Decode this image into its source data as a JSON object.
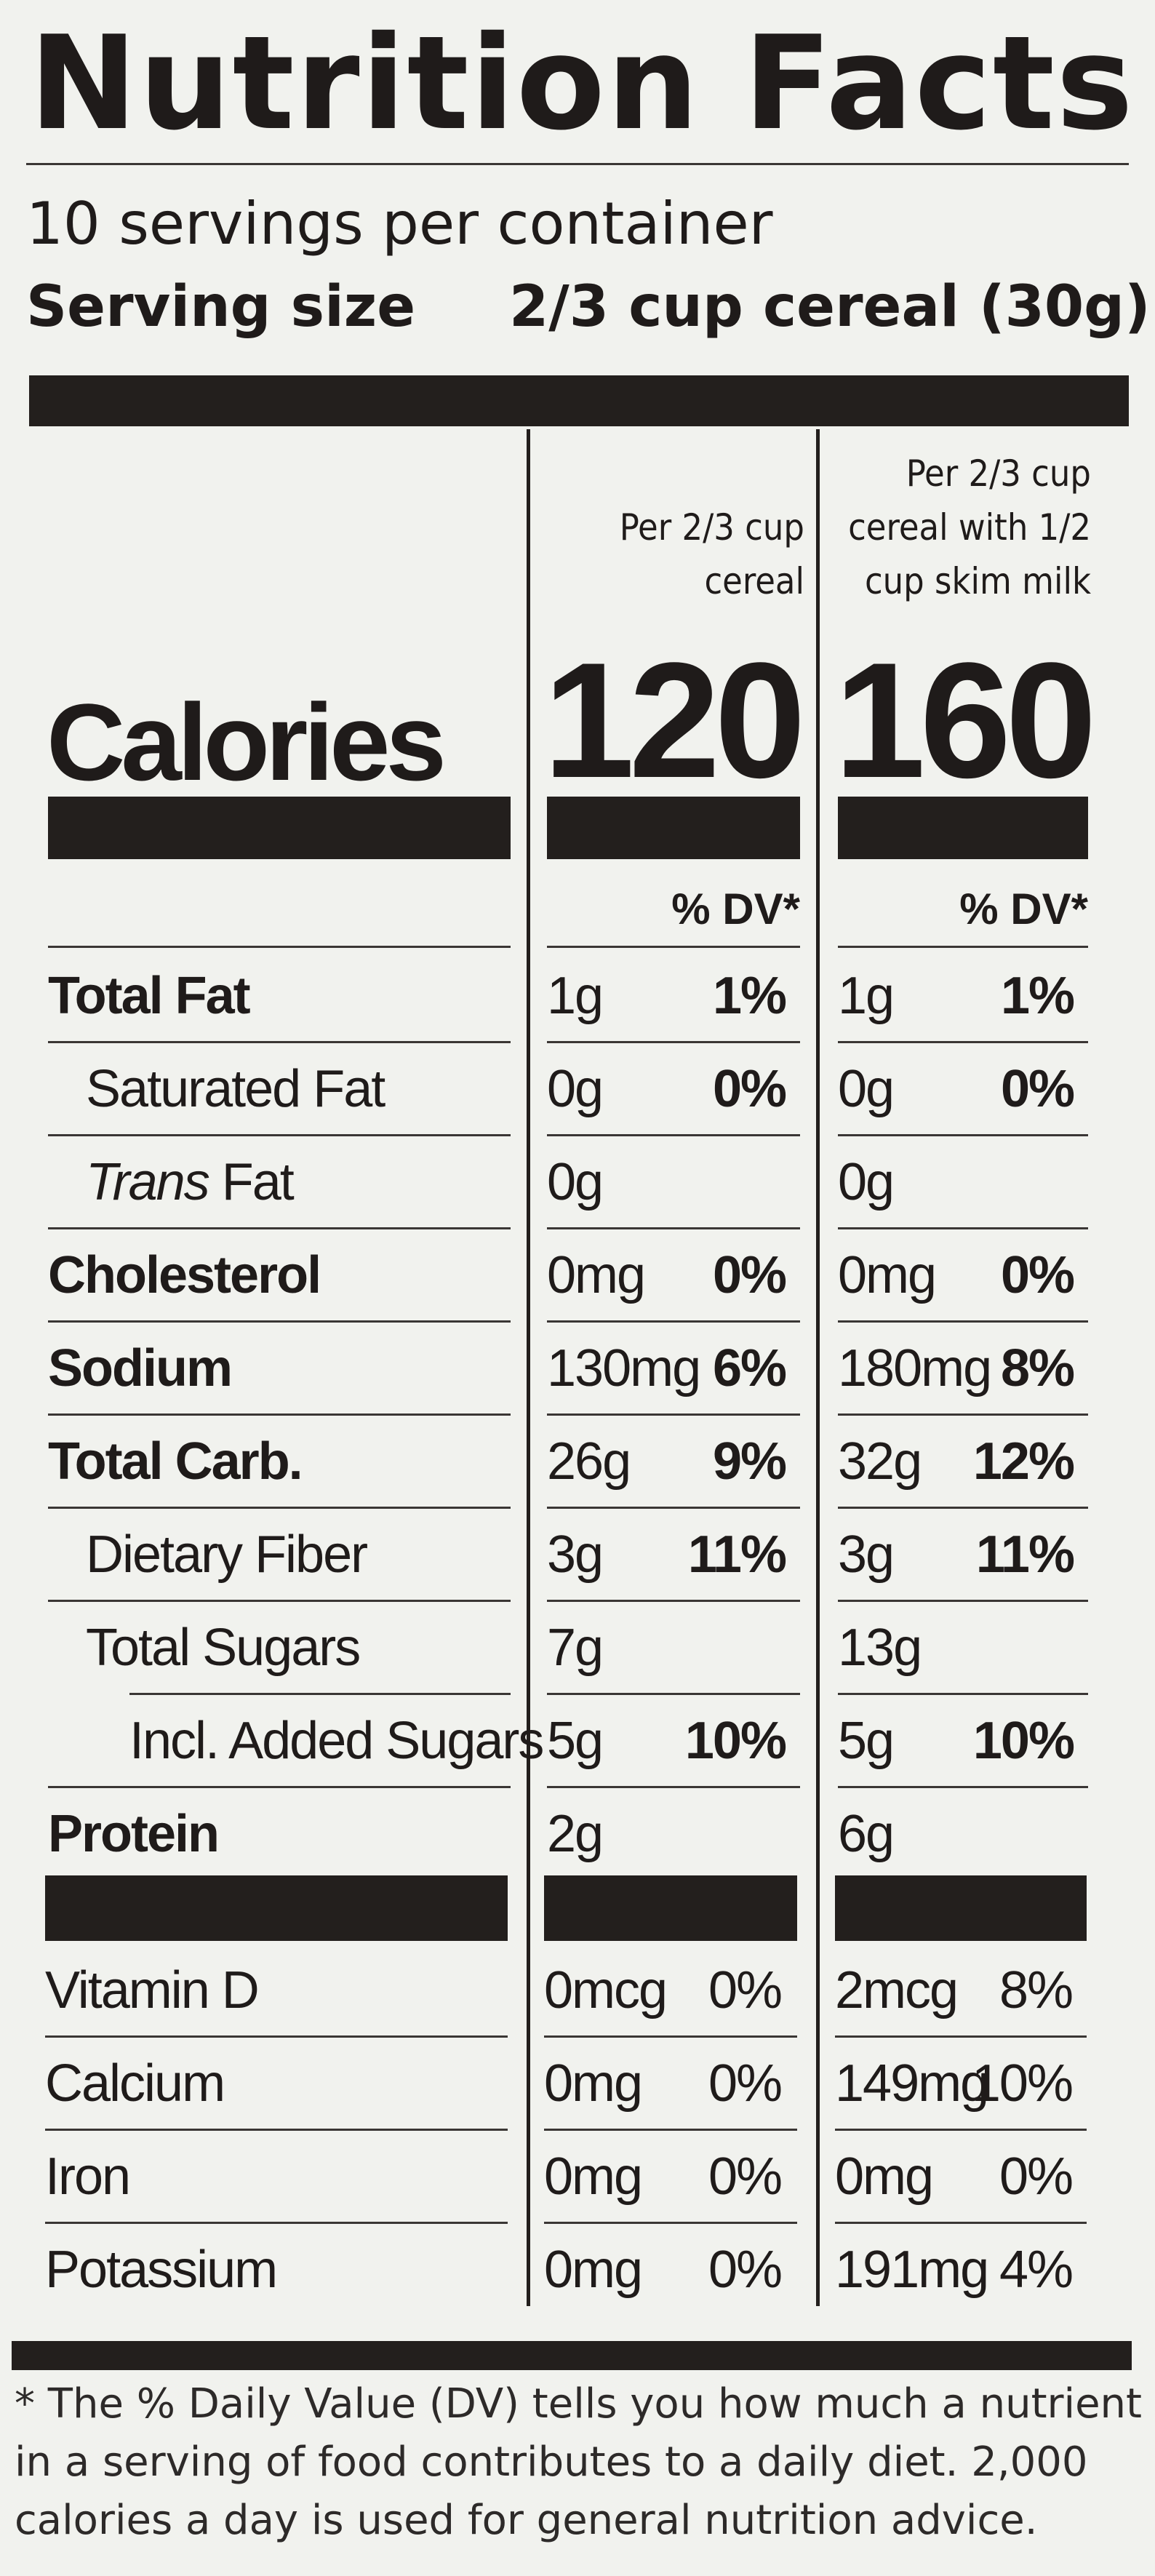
{
  "title": {
    "word1": "Nutrition",
    "word2": "Facts"
  },
  "servings_per_container": "10 servings per container",
  "serving_size": {
    "label": "Serving size",
    "value": "2/3 cup cereal (30g)"
  },
  "columns": [
    {
      "header_lines": [
        "Per 2/3 cup",
        "cereal"
      ],
      "calories": "120",
      "dv_header": "% DV*"
    },
    {
      "header_lines": [
        "Per 2/3 cup",
        "cereal with 1/2",
        "cup skim milk"
      ],
      "calories": "160",
      "dv_header": "% DV*"
    }
  ],
  "calories_label": "Calories",
  "nutrients": [
    {
      "label": "Total Fat",
      "bold": true,
      "indent": 0,
      "c1": {
        "amount": "1g",
        "dv": "1%"
      },
      "c2": {
        "amount": "1g",
        "dv": "1%"
      }
    },
    {
      "label": "Saturated Fat",
      "bold": false,
      "indent": 1,
      "c1": {
        "amount": "0g",
        "dv": "0%"
      },
      "c2": {
        "amount": "0g",
        "dv": "0%"
      }
    },
    {
      "label_italic": "Trans",
      "label": " Fat",
      "bold": false,
      "indent": 1,
      "c1": {
        "amount": "0g",
        "dv": ""
      },
      "c2": {
        "amount": "0g",
        "dv": ""
      }
    },
    {
      "label": "Cholesterol",
      "bold": true,
      "indent": 0,
      "c1": {
        "amount": "0mg",
        "dv": "0%"
      },
      "c2": {
        "amount": "0mg",
        "dv": "0%"
      }
    },
    {
      "label": "Sodium",
      "bold": true,
      "indent": 0,
      "c1": {
        "amount": "130mg",
        "dv": "6%"
      },
      "c2": {
        "amount": "180mg",
        "dv": "8%"
      }
    },
    {
      "label": "Total Carb.",
      "bold": true,
      "indent": 0,
      "c1": {
        "amount": "26g",
        "dv": "9%"
      },
      "c2": {
        "amount": "32g",
        "dv": "12%"
      }
    },
    {
      "label": "Dietary Fiber",
      "bold": false,
      "indent": 1,
      "c1": {
        "amount": "3g",
        "dv": "11%"
      },
      "c2": {
        "amount": "3g",
        "dv": "11%"
      }
    },
    {
      "label": "Total Sugars",
      "bold": false,
      "indent": 1,
      "c1": {
        "amount": "7g",
        "dv": ""
      },
      "c2": {
        "amount": "13g",
        "dv": ""
      }
    },
    {
      "label": "Incl. Added Sugars",
      "bold": false,
      "indent": 2,
      "c1": {
        "amount": "5g",
        "dv": "10%"
      },
      "c2": {
        "amount": "5g",
        "dv": "10%"
      }
    },
    {
      "label": "Protein",
      "bold": true,
      "indent": 0,
      "c1": {
        "amount": "2g",
        "dv": ""
      },
      "c2": {
        "amount": "6g",
        "dv": ""
      }
    }
  ],
  "vitamins": [
    {
      "label": "Vitamin D",
      "c1": {
        "amount": "0mcg",
        "dv": "0%"
      },
      "c2": {
        "amount": "2mcg",
        "dv": "8%"
      }
    },
    {
      "label": "Calcium",
      "c1": {
        "amount": "0mg",
        "dv": "0%"
      },
      "c2": {
        "amount": "149mg",
        "dv": "10%"
      }
    },
    {
      "label": "Iron",
      "c1": {
        "amount": "0mg",
        "dv": "0%"
      },
      "c2": {
        "amount": "0mg",
        "dv": "0%"
      }
    },
    {
      "label": "Potassium",
      "c1": {
        "amount": "0mg",
        "dv": "0%"
      },
      "c2": {
        "amount": "191mg",
        "dv": "4%"
      }
    }
  ],
  "footnote": "* The % Daily Value (DV) tells you how much a nutrient in a serving of food contributes to a daily diet. 2,000 calories a day is used for general nutrition advice."
}
